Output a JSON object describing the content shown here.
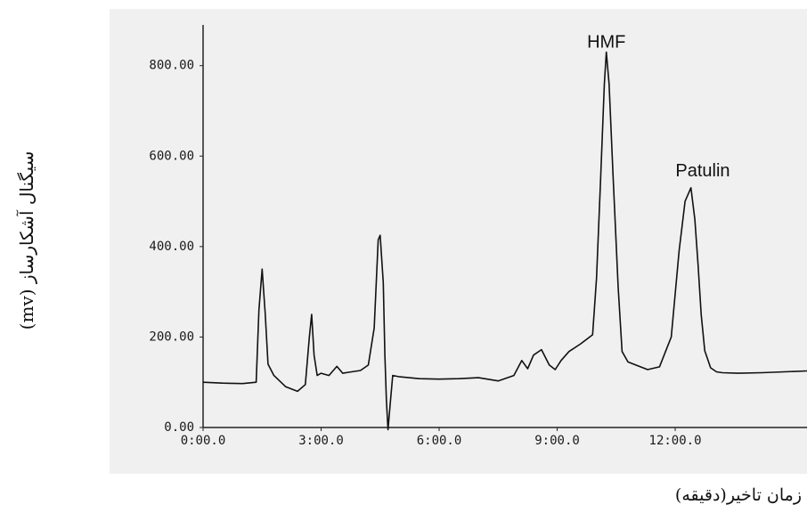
{
  "chart_data": {
    "type": "line",
    "title": "",
    "xlabel": "زمان تاخیر(دقیقه)",
    "ylabel": "سیگنال آشکارساز (mv)",
    "x_tick_labels": [
      "0:00.0",
      "3:00.0",
      "6:00.0",
      "9:00.0",
      "12:00.0"
    ],
    "y_tick_labels": [
      "0.00",
      "200.00",
      "400.00",
      "600.00",
      "800.00"
    ],
    "x_ticks": [
      0,
      3,
      6,
      9,
      12
    ],
    "y_ticks": [
      0,
      200,
      400,
      600,
      800
    ],
    "xlim": [
      0,
      15.35
    ],
    "ylim": [
      0,
      890
    ],
    "annotations": [
      {
        "text": "HMF",
        "x": 10.25,
        "y": 840
      },
      {
        "text": "Patulin",
        "x": 12.7,
        "y": 555
      }
    ],
    "series": [
      {
        "x": [
          0,
          0.5,
          1.0,
          1.35,
          1.42,
          1.5,
          1.58,
          1.65,
          1.8,
          2.1,
          2.4,
          2.6,
          2.7,
          2.76,
          2.82,
          2.9,
          3.0,
          3.2,
          3.4,
          3.55,
          3.7,
          4.0,
          4.2,
          4.35,
          4.45,
          4.5,
          4.58,
          4.62,
          4.66,
          4.7,
          4.76,
          4.82,
          5.0,
          5.5,
          6.0,
          6.5,
          7.0,
          7.5,
          7.9,
          8.1,
          8.25,
          8.4,
          8.6,
          8.8,
          8.95,
          9.1,
          9.3,
          9.6,
          9.9,
          10.0,
          10.1,
          10.2,
          10.25,
          10.32,
          10.42,
          10.55,
          10.65,
          10.8,
          11.0,
          11.3,
          11.6,
          11.9,
          12.1,
          12.25,
          12.4,
          12.5,
          12.58,
          12.66,
          12.75,
          12.9,
          13.05,
          13.2,
          13.6,
          14.2,
          15.35
        ],
        "values": [
          100,
          98,
          97,
          100,
          260,
          350,
          250,
          140,
          115,
          90,
          80,
          95,
          200,
          250,
          160,
          115,
          120,
          115,
          135,
          120,
          122,
          126,
          138,
          220,
          415,
          425,
          320,
          160,
          60,
          -5,
          55,
          115,
          112,
          108,
          107,
          108,
          110,
          103,
          115,
          148,
          130,
          160,
          172,
          138,
          128,
          148,
          168,
          185,
          205,
          330,
          540,
          760,
          830,
          760,
          560,
          310,
          168,
          145,
          138,
          128,
          134,
          200,
          390,
          500,
          530,
          460,
          360,
          250,
          170,
          132,
          123,
          121,
          120,
          121,
          125
        ]
      }
    ]
  }
}
